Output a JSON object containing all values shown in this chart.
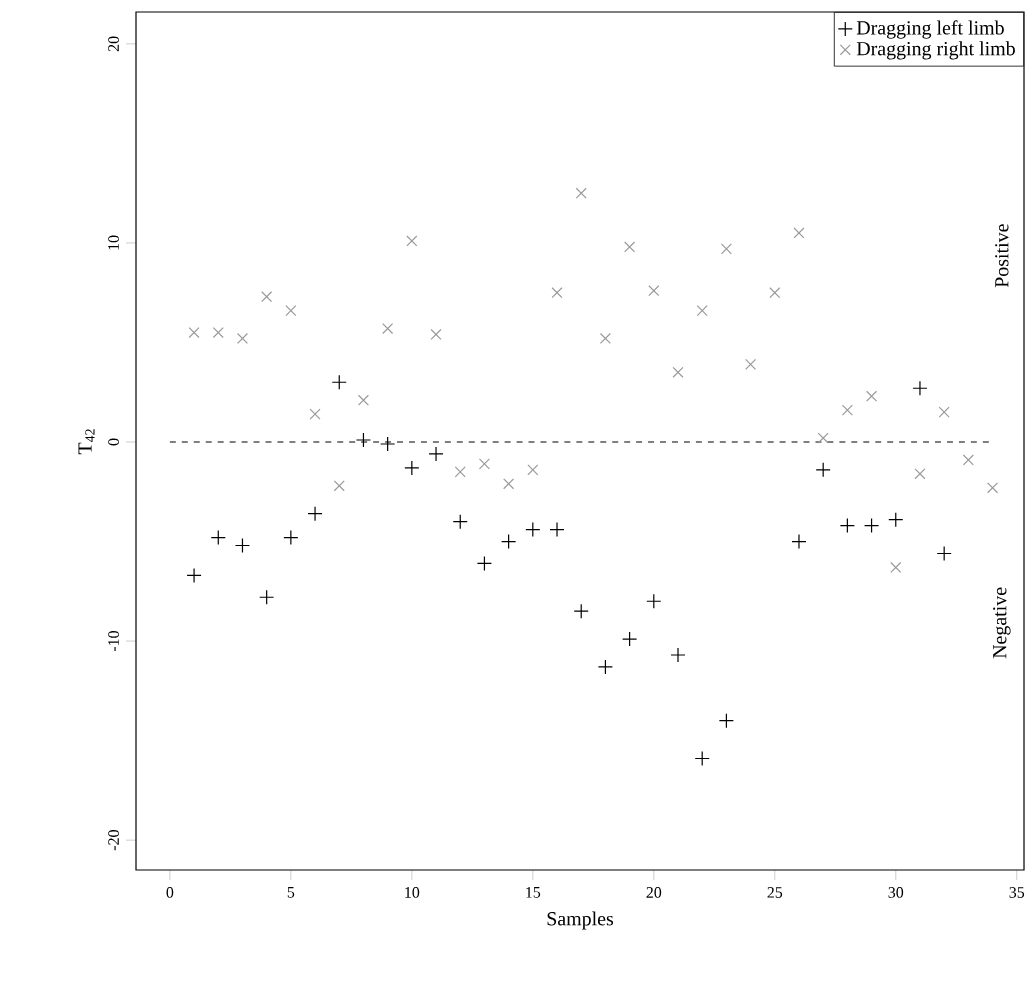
{
  "chart_data": {
    "type": "scatter",
    "xlabel": "Samples",
    "ylabel": "T$_{42}$",
    "xlim": [
      -1.4,
      35.3
    ],
    "ylim": [
      -21.5,
      21.6
    ],
    "xticks": [
      0,
      5,
      10,
      15,
      20,
      25,
      30,
      35
    ],
    "yticks": [
      -20,
      -10,
      0,
      10,
      20
    ],
    "grid": false,
    "legend": "top right",
    "series": [
      {
        "name": "Dragging left limb",
        "color": "#000000",
        "marker": "plus",
        "x": [
          1,
          2,
          3,
          4,
          5,
          6,
          7,
          8,
          9,
          10,
          11,
          12,
          13,
          14,
          15,
          16,
          17,
          18,
          19,
          20,
          21,
          22,
          23,
          26,
          27,
          28,
          29,
          30,
          31,
          32
        ],
        "values": [
          -6.7,
          -4.8,
          -5.2,
          -7.8,
          -4.8,
          -3.6,
          3.0,
          0.1,
          -0.1,
          -1.3,
          -0.6,
          -4.0,
          -6.1,
          -5.0,
          -4.4,
          -4.4,
          -8.5,
          -11.3,
          -9.9,
          -8.0,
          -10.7,
          -15.9,
          -14.0,
          -5.0,
          -1.4,
          -4.2,
          -4.2,
          -3.9,
          2.7,
          -5.6
        ]
      },
      {
        "name": "Dragging right limb",
        "color": "#999999",
        "marker": "cross",
        "x": [
          1,
          2,
          3,
          4,
          5,
          6,
          7,
          8,
          9,
          10,
          11,
          12,
          13,
          14,
          15,
          16,
          17,
          18,
          19,
          20,
          21,
          22,
          23,
          24,
          25,
          26,
          27,
          28,
          29,
          30,
          31,
          32,
          33,
          34
        ],
        "values": [
          5.5,
          5.5,
          5.2,
          7.3,
          6.6,
          1.4,
          -2.2,
          2.1,
          5.7,
          10.1,
          5.4,
          -1.5,
          -1.1,
          -2.1,
          -1.4,
          7.5,
          12.5,
          5.2,
          9.8,
          7.6,
          3.5,
          6.6,
          9.7,
          3.9,
          7.5,
          10.5,
          0.2,
          1.6,
          2.3,
          -6.3,
          -1.6,
          1.5,
          -0.9,
          -2.3
        ]
      }
    ],
    "ref_lines": [
      {
        "axis": "y",
        "value": 0,
        "color": "#000000",
        "line_style": "dashed"
      }
    ],
    "annotations": [
      "Positive",
      "Negative"
    ]
  }
}
